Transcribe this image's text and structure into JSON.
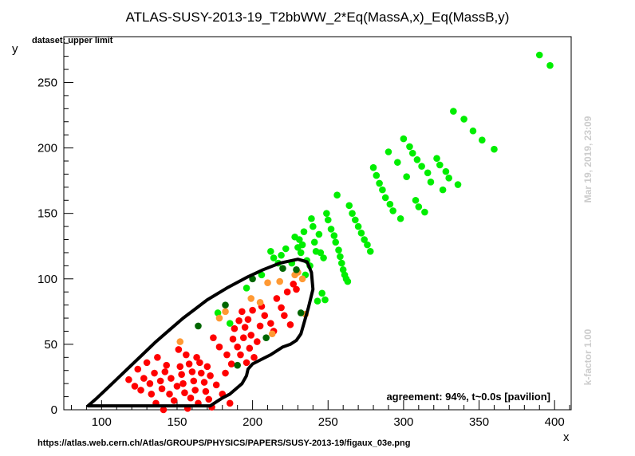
{
  "chart_data": {
    "type": "scatter",
    "title": "ATLAS-SUSY-2013-19_T2bbWW_2*Eq(MassA,x)_Eq(MassB,y)",
    "xlabel": "x",
    "ylabel": "y",
    "xlim": [
      75,
      411
    ],
    "ylim": [
      0,
      285
    ],
    "xticks": [
      100,
      150,
      200,
      250,
      300,
      350,
      400
    ],
    "yticks": [
      0,
      50,
      100,
      150,
      200,
      250
    ],
    "grid": false,
    "dataset_label": "dataset: upper limit",
    "agreement_label": "agreement: 94%, t~0.0s [pavilion]",
    "timestamp_label": "Mar 19, 2019, 23:09",
    "kfactor_label": "k-factor 1.00",
    "source_url": "https://atlas.web.cern.ch/Atlas/GROUPS/PHYSICS/PAPERS/SUSY-2013-19/figaux_03e.png",
    "colors": {
      "excluded": "#ff0000",
      "allowed": "#00ee00",
      "excluded_near": "#ff9933",
      "allowed_near": "#006600",
      "contour": "#000000"
    },
    "series": [
      {
        "category": "excluded",
        "points": [
          [
            118,
            23
          ],
          [
            122,
            18
          ],
          [
            124,
            31
          ],
          [
            126,
            15
          ],
          [
            128,
            24
          ],
          [
            130,
            36
          ],
          [
            132,
            20
          ],
          [
            133,
            12
          ],
          [
            135,
            28
          ],
          [
            136,
            5
          ],
          [
            137,
            40
          ],
          [
            139,
            22
          ],
          [
            140,
            16
          ],
          [
            141,
            0
          ],
          [
            142,
            29
          ],
          [
            143,
            34
          ],
          [
            145,
            12
          ],
          [
            146,
            24
          ],
          [
            148,
            7
          ],
          [
            150,
            18
          ],
          [
            151,
            46
          ],
          [
            152,
            33
          ],
          [
            153,
            27
          ],
          [
            154,
            20
          ],
          [
            155,
            13
          ],
          [
            156,
            42
          ],
          [
            157,
            1
          ],
          [
            158,
            35
          ],
          [
            159,
            9
          ],
          [
            160,
            29
          ],
          [
            161,
            22
          ],
          [
            162,
            15
          ],
          [
            163,
            40
          ],
          [
            164,
            5
          ],
          [
            165,
            36
          ],
          [
            166,
            28
          ],
          [
            168,
            21
          ],
          [
            169,
            14
          ],
          [
            170,
            33
          ],
          [
            171,
            8
          ],
          [
            172,
            26
          ],
          [
            173,
            2
          ],
          [
            174,
            55
          ],
          [
            176,
            19
          ],
          [
            178,
            48
          ],
          [
            180,
            12
          ],
          [
            182,
            28
          ],
          [
            183,
            42
          ],
          [
            185,
            5
          ],
          [
            186,
            35
          ],
          [
            187,
            54
          ],
          [
            188,
            62
          ],
          [
            190,
            48
          ],
          [
            191,
            68
          ],
          [
            192,
            42
          ],
          [
            193,
            75
          ],
          [
            194,
            55
          ],
          [
            195,
            63
          ],
          [
            196,
            36
          ],
          [
            197,
            69
          ],
          [
            198,
            47
          ],
          [
            199,
            57
          ],
          [
            200,
            76
          ],
          [
            201,
            40
          ],
          [
            203,
            52
          ],
          [
            205,
            64
          ],
          [
            206,
            79
          ],
          [
            208,
            72
          ],
          [
            212,
            66
          ],
          [
            214,
            60
          ],
          [
            216,
            85
          ],
          [
            219,
            78
          ],
          [
            221,
            72
          ],
          [
            223,
            90
          ],
          [
            225,
            65
          ],
          [
            227,
            96
          ],
          [
            229,
            92
          ]
        ]
      },
      {
        "category": "allowed",
        "points": [
          [
            177,
            74
          ],
          [
            185,
            66
          ],
          [
            196,
            93
          ],
          [
            206,
            103
          ],
          [
            212,
            121
          ],
          [
            214,
            116
          ],
          [
            217,
            112
          ],
          [
            219,
            118
          ],
          [
            222,
            123
          ],
          [
            226,
            112
          ],
          [
            228,
            132
          ],
          [
            230,
            124
          ],
          [
            231,
            130
          ],
          [
            232,
            120
          ],
          [
            233,
            126
          ],
          [
            234,
            136
          ],
          [
            235,
            103
          ],
          [
            236,
            114
          ],
          [
            238,
            110
          ],
          [
            239,
            146
          ],
          [
            240,
            140
          ],
          [
            241,
            128
          ],
          [
            242,
            121
          ],
          [
            243,
            83
          ],
          [
            244,
            134
          ],
          [
            245,
            120
          ],
          [
            246,
            89
          ],
          [
            247,
            116
          ],
          [
            248,
            84
          ],
          [
            249,
            150
          ],
          [
            250,
            145
          ],
          [
            252,
            138
          ],
          [
            254,
            133
          ],
          [
            255,
            128
          ],
          [
            256,
            164
          ],
          [
            257,
            122
          ],
          [
            258,
            117
          ],
          [
            259,
            112
          ],
          [
            260,
            107
          ],
          [
            261,
            103
          ],
          [
            262,
            100
          ],
          [
            263,
            98
          ],
          [
            264,
            156
          ],
          [
            266,
            150
          ],
          [
            268,
            145
          ],
          [
            270,
            140
          ],
          [
            272,
            135
          ],
          [
            274,
            130
          ],
          [
            276,
            126
          ],
          [
            278,
            121
          ],
          [
            280,
            185
          ],
          [
            282,
            179
          ],
          [
            284,
            173
          ],
          [
            286,
            168
          ],
          [
            288,
            162
          ],
          [
            290,
            197
          ],
          [
            291,
            157
          ],
          [
            293,
            152
          ],
          [
            296,
            189
          ],
          [
            298,
            146
          ],
          [
            300,
            207
          ],
          [
            302,
            178
          ],
          [
            304,
            201
          ],
          [
            306,
            196
          ],
          [
            308,
            160
          ],
          [
            309,
            191
          ],
          [
            310,
            155
          ],
          [
            312,
            186
          ],
          [
            314,
            151
          ],
          [
            316,
            181
          ],
          [
            318,
            174
          ],
          [
            322,
            192
          ],
          [
            324,
            187
          ],
          [
            326,
            168
          ],
          [
            328,
            182
          ],
          [
            330,
            177
          ],
          [
            333,
            228
          ],
          [
            336,
            172
          ],
          [
            340,
            222
          ],
          [
            346,
            213
          ],
          [
            352,
            206
          ],
          [
            360,
            199
          ],
          [
            390,
            271
          ],
          [
            397,
            263
          ]
        ]
      },
      {
        "category": "excluded_near",
        "points": [
          [
            152,
            52
          ],
          [
            178,
            70
          ],
          [
            182,
            75
          ],
          [
            199,
            85
          ],
          [
            205,
            82
          ],
          [
            210,
            97
          ],
          [
            213,
            58
          ],
          [
            218,
            98
          ],
          [
            228,
            103
          ],
          [
            230,
            105
          ],
          [
            233,
            100
          ],
          [
            235,
            73
          ]
        ]
      },
      {
        "category": "allowed_near",
        "points": [
          [
            164,
            64
          ],
          [
            182,
            80
          ],
          [
            190,
            34
          ],
          [
            200,
            100
          ],
          [
            209,
            55
          ],
          [
            220,
            108
          ],
          [
            229,
            107
          ],
          [
            232,
            74
          ]
        ]
      }
    ],
    "contour": [
      [
        91,
        3
      ],
      [
        172,
        3
      ],
      [
        176,
        6
      ],
      [
        180,
        9
      ],
      [
        185,
        12
      ],
      [
        189,
        16
      ],
      [
        193,
        20
      ],
      [
        196,
        26
      ],
      [
        197,
        31
      ],
      [
        200,
        35
      ],
      [
        205,
        38
      ],
      [
        212,
        42
      ],
      [
        220,
        48
      ],
      [
        225,
        50
      ],
      [
        229,
        53
      ],
      [
        232,
        58
      ],
      [
        234,
        66
      ],
      [
        237,
        78
      ],
      [
        240,
        92
      ],
      [
        239,
        105
      ],
      [
        236,
        113
      ],
      [
        230,
        115
      ],
      [
        218,
        112
      ],
      [
        207,
        107
      ],
      [
        196,
        101
      ],
      [
        183,
        93
      ],
      [
        170,
        84
      ],
      [
        162,
        77
      ],
      [
        154,
        70
      ],
      [
        145,
        61
      ],
      [
        136,
        52
      ],
      [
        127,
        42
      ],
      [
        117,
        31
      ],
      [
        107,
        20
      ],
      [
        97,
        9
      ],
      [
        91,
        3
      ]
    ]
  }
}
